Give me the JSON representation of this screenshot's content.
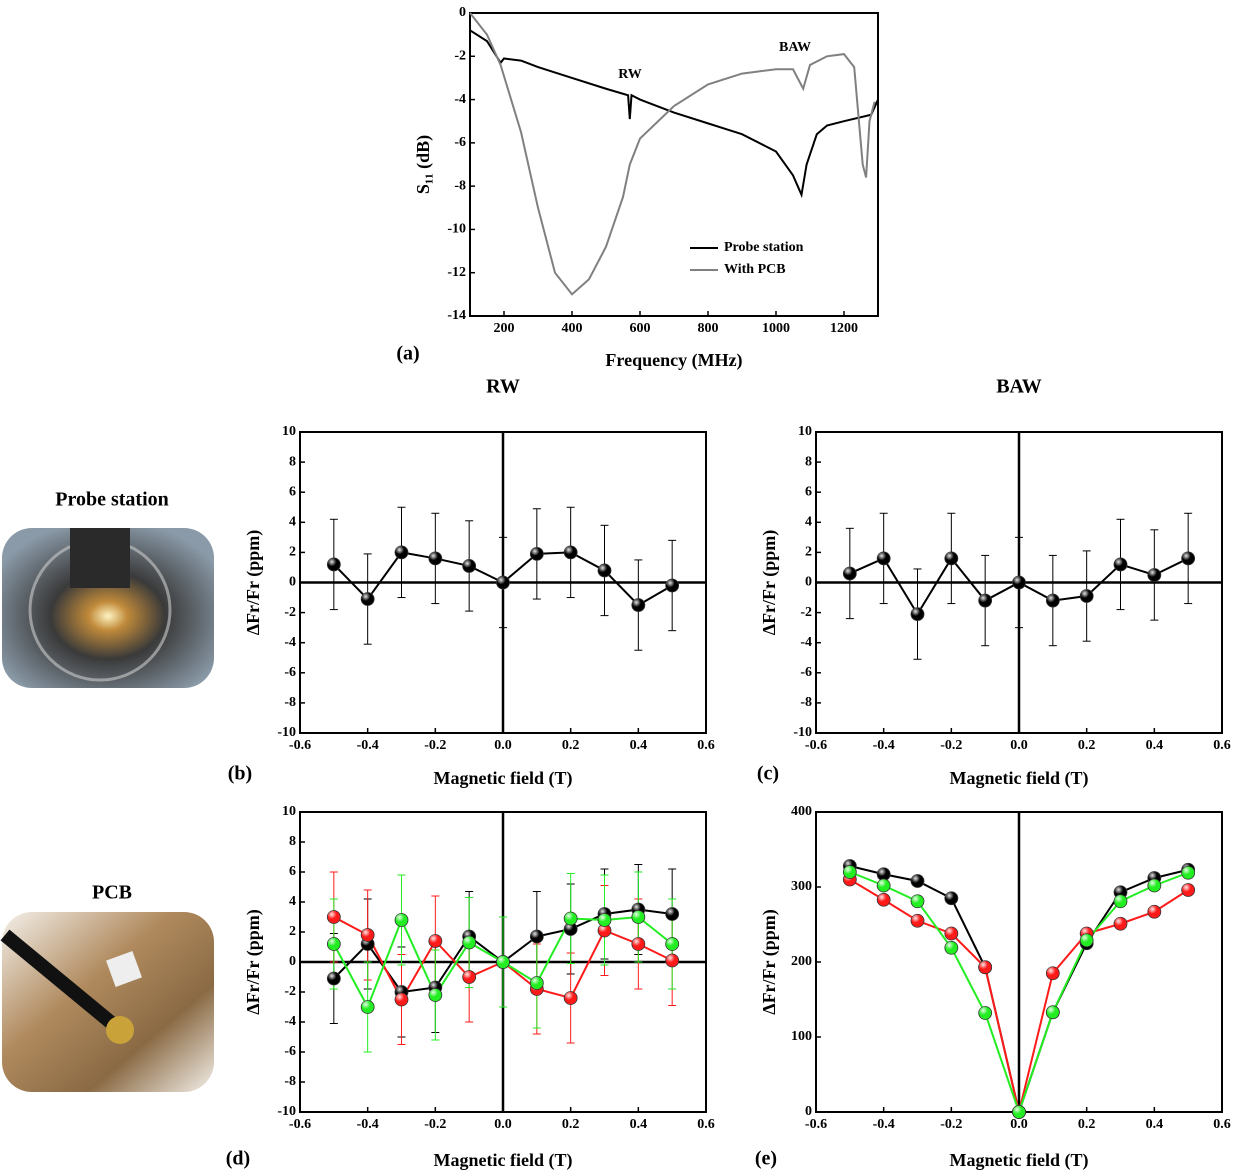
{
  "row_labels": [
    "Probe station",
    "PCB"
  ],
  "chart_data": [
    {
      "type": "line",
      "panel_label": "(a)",
      "x_label": "Frequency (MHz)",
      "y_label": "S₁₁ (dB)",
      "xlim": [
        100,
        1300
      ],
      "xticks": [
        200,
        400,
        600,
        800,
        1000,
        1200
      ],
      "ylim": [
        -14,
        0
      ],
      "yticks": [
        -14,
        -12,
        -10,
        -8,
        -6,
        -4,
        -2,
        0
      ],
      "annotations": [
        "RW",
        "BAW"
      ],
      "legend": "lower right",
      "series": [
        {
          "name": "Probe station",
          "color": "#000000",
          "x": [
            100,
            150,
            190,
            200,
            250,
            300,
            400,
            500,
            565,
            570,
            575,
            600,
            700,
            800,
            900,
            1000,
            1050,
            1075,
            1090,
            1120,
            1150,
            1200,
            1280,
            1300
          ],
          "values": [
            -0.8,
            -1.3,
            -2.3,
            -2.1,
            -2.2,
            -2.5,
            -3.0,
            -3.5,
            -3.8,
            -4.9,
            -3.8,
            -4.0,
            -4.6,
            -5.1,
            -5.6,
            -6.4,
            -7.5,
            -8.4,
            -7.0,
            -5.6,
            -5.2,
            -5.0,
            -4.7,
            -4.0
          ]
        },
        {
          "name": "With PCB",
          "color": "#808080",
          "x": [
            100,
            150,
            190,
            250,
            300,
            350,
            400,
            450,
            500,
            550,
            570,
            600,
            700,
            800,
            900,
            1000,
            1050,
            1080,
            1100,
            1150,
            1200,
            1230,
            1255,
            1265,
            1275,
            1290
          ],
          "values": [
            0,
            -1.0,
            -2.4,
            -5.5,
            -9.0,
            -12.0,
            -13.0,
            -12.3,
            -10.8,
            -8.5,
            -7.0,
            -5.8,
            -4.3,
            -3.3,
            -2.8,
            -2.6,
            -2.6,
            -3.5,
            -2.4,
            -2.0,
            -1.9,
            -2.5,
            -7.0,
            -7.6,
            -5.0,
            -4.1
          ]
        }
      ]
    },
    {
      "type": "scatter",
      "title": "RW",
      "panel_label": "(b)",
      "x_label": "Magnetic field (T)",
      "y_label": "ΔFr/Fr (ppm)",
      "xlim": [
        -0.6,
        0.6
      ],
      "xticks": [
        -0.6,
        -0.4,
        -0.2,
        {
          "value": 0,
          "label": "0.0"
        },
        0.2,
        0.4,
        0.6
      ],
      "ylim": [
        -10,
        10
      ],
      "yticks": [
        -10,
        -8,
        -6,
        -4,
        -2,
        0,
        2,
        4,
        6,
        8,
        10
      ],
      "x": [
        -0.5,
        -0.4,
        -0.3,
        -0.2,
        -0.1,
        0,
        0.1,
        0.2,
        0.3,
        0.4,
        0.5
      ],
      "series": [
        {
          "color": "#000000",
          "values": [
            1.2,
            -1.1,
            2.0,
            1.6,
            1.1,
            0,
            1.9,
            2.0,
            0.8,
            -1.5,
            -0.2
          ],
          "errors": [
            3,
            3,
            3,
            3,
            3,
            3,
            3,
            3,
            3,
            3,
            3
          ]
        }
      ]
    },
    {
      "type": "scatter",
      "title": "BAW",
      "panel_label": "(c)",
      "x_label": "Magnetic field (T)",
      "y_label": "ΔFr/Fr (ppm)",
      "xlim": [
        -0.6,
        0.6
      ],
      "xticks": [
        -0.6,
        -0.4,
        -0.2,
        {
          "value": 0,
          "label": "0.0"
        },
        0.2,
        0.4,
        0.6
      ],
      "ylim": [
        -10,
        10
      ],
      "yticks": [
        -10,
        -8,
        -6,
        -4,
        -2,
        0,
        2,
        4,
        6,
        8,
        10
      ],
      "x": [
        -0.5,
        -0.4,
        -0.3,
        -0.2,
        -0.1,
        0,
        0.1,
        0.2,
        0.3,
        0.4,
        0.5
      ],
      "series": [
        {
          "color": "#000000",
          "values": [
            0.6,
            1.6,
            -2.1,
            1.6,
            -1.2,
            0,
            -1.2,
            -0.9,
            1.2,
            0.5,
            1.6
          ],
          "errors": [
            3,
            3,
            3,
            3,
            3,
            3,
            3,
            3,
            3,
            3,
            3
          ]
        }
      ]
    },
    {
      "type": "scatter",
      "panel_label": "(d)",
      "x_label": "Magnetic field (T)",
      "y_label": "ΔFr/Fr (ppm)",
      "xlim": [
        -0.6,
        0.6
      ],
      "xticks": [
        -0.6,
        -0.4,
        -0.2,
        {
          "value": 0,
          "label": "0.0"
        },
        0.2,
        0.4,
        0.6
      ],
      "ylim": [
        -10,
        10
      ],
      "yticks": [
        -10,
        -8,
        -6,
        -4,
        -2,
        0,
        2,
        4,
        6,
        8,
        10
      ],
      "x": [
        -0.5,
        -0.4,
        -0.3,
        -0.2,
        -0.1,
        0,
        0.1,
        0.2,
        0.3,
        0.4,
        0.5
      ],
      "series": [
        {
          "color": "#000000",
          "values": [
            -1.1,
            1.2,
            -2.0,
            -1.7,
            1.7,
            0,
            1.7,
            2.2,
            3.2,
            3.5,
            3.2
          ],
          "errors": [
            3,
            3,
            3,
            3,
            3,
            3,
            3,
            3,
            3,
            3,
            3
          ]
        },
        {
          "color": "#ff1a1a",
          "values": [
            3.0,
            1.8,
            -2.5,
            1.4,
            -1.0,
            0,
            -1.8,
            -2.4,
            2.1,
            1.2,
            0.1
          ],
          "errors": [
            3,
            3,
            3,
            3,
            3,
            3,
            3,
            3,
            3,
            3,
            3
          ]
        },
        {
          "color": "#22ee22",
          "values": [
            1.2,
            -3.0,
            2.8,
            -2.2,
            1.3,
            0,
            -1.4,
            2.9,
            2.8,
            3.0,
            1.2
          ],
          "errors": [
            3,
            3,
            3,
            3,
            3,
            3,
            3,
            3,
            3,
            3,
            3
          ]
        }
      ]
    },
    {
      "type": "scatter",
      "panel_label": "(e)",
      "x_label": "Magnetic field (T)",
      "y_label": "ΔFr/Fr (ppm)",
      "xlim": [
        -0.6,
        0.6
      ],
      "xticks": [
        -0.6,
        -0.4,
        -0.2,
        {
          "value": 0,
          "label": "0.0"
        },
        0.2,
        0.4,
        0.6
      ],
      "ylim": [
        0,
        400
      ],
      "yticks": [
        0,
        100,
        200,
        300,
        400
      ],
      "x": [
        -0.5,
        -0.4,
        -0.3,
        -0.2,
        -0.1,
        0,
        0.1,
        0.2,
        0.3,
        0.4,
        0.5
      ],
      "series": [
        {
          "color": "#000000",
          "values": [
            328,
            317,
            308,
            285,
            193,
            0,
            133,
            225,
            293,
            312,
            323
          ]
        },
        {
          "color": "#ff1a1a",
          "values": [
            310,
            283,
            255,
            238,
            193,
            0,
            185,
            238,
            251,
            267,
            296
          ]
        },
        {
          "color": "#22ee22",
          "values": [
            320,
            302,
            281,
            219,
            132,
            0,
            133,
            229,
            281,
            302,
            319
          ]
        }
      ]
    }
  ]
}
